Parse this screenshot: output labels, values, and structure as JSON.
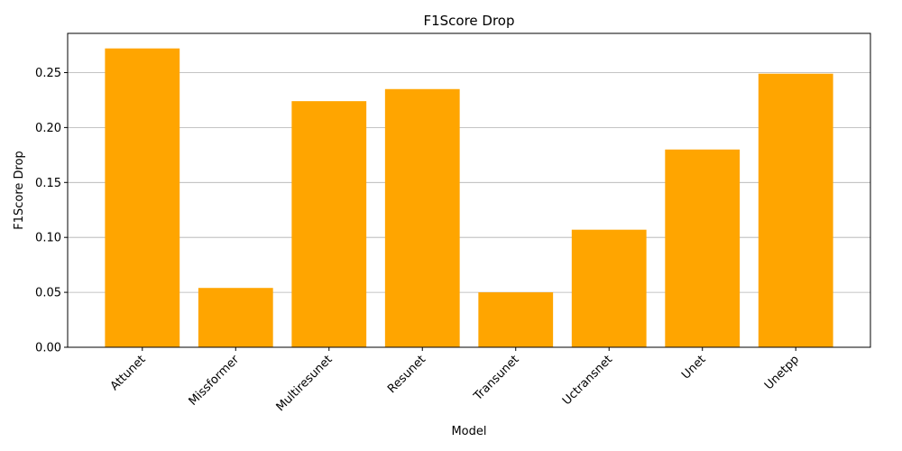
{
  "chart_data": {
    "type": "bar",
    "title": "F1Score Drop",
    "xlabel": "Model",
    "ylabel": "F1Score Drop",
    "categories": [
      "Attunet",
      "Missformer",
      "Multiresunet",
      "Resunet",
      "Transunet",
      "Uctransnet",
      "Unet",
      "Unetpp"
    ],
    "values": [
      0.272,
      0.054,
      0.224,
      0.235,
      0.05,
      0.107,
      0.18,
      0.249
    ],
    "ylim": [
      0,
      0.2857
    ],
    "yticks": [
      "0.00",
      "0.05",
      "0.10",
      "0.15",
      "0.20",
      "0.25"
    ],
    "ytick_values": [
      0,
      0.05,
      0.1,
      0.15,
      0.2,
      0.25
    ],
    "grid": "y-major",
    "bar_color": "#ffa500",
    "legend": "none"
  }
}
